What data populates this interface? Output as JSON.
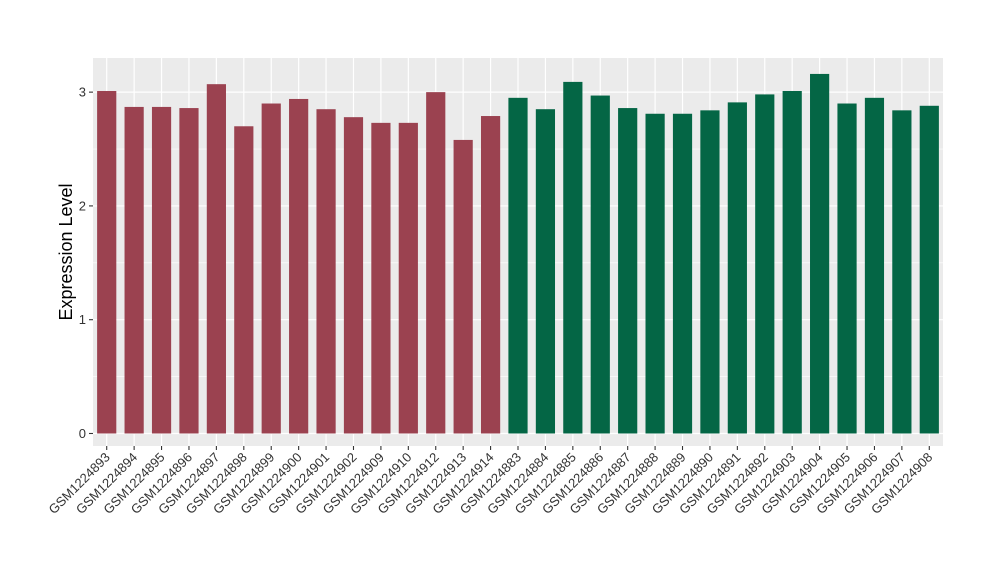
{
  "chart_data": {
    "type": "bar",
    "title": "",
    "xlabel": "",
    "ylabel": "Expression Level",
    "ylim": [
      -0.11,
      3.3
    ],
    "yticks": [
      0,
      1,
      2,
      3
    ],
    "grid": true,
    "legend": "none",
    "categories": [
      "GSM1224893",
      "GSM1224894",
      "GSM1224895",
      "GSM1224896",
      "GSM1224897",
      "GSM1224898",
      "GSM1224899",
      "GSM1224900",
      "GSM1224901",
      "GSM1224902",
      "GSM1224909",
      "GSM1224910",
      "GSM1224912",
      "GSM1224913",
      "GSM1224914",
      "GSM1224883",
      "GSM1224884",
      "GSM1224885",
      "GSM1224886",
      "GSM1224887",
      "GSM1224888",
      "GSM1224889",
      "GSM1224890",
      "GSM1224891",
      "GSM1224892",
      "GSM1224903",
      "GSM1224904",
      "GSM1224905",
      "GSM1224906",
      "GSM1224907",
      "GSM1224908"
    ],
    "values": [
      3.01,
      2.87,
      2.87,
      2.86,
      3.07,
      2.7,
      2.9,
      2.94,
      2.85,
      2.78,
      2.73,
      2.73,
      3.0,
      2.58,
      2.79,
      2.95,
      2.85,
      3.09,
      2.97,
      2.86,
      2.81,
      2.81,
      2.84,
      2.91,
      2.98,
      3.01,
      3.16,
      2.9,
      2.95,
      2.84,
      2.88
    ],
    "group_colors": [
      "#9b4250",
      "#9b4250",
      "#9b4250",
      "#9b4250",
      "#9b4250",
      "#9b4250",
      "#9b4250",
      "#9b4250",
      "#9b4250",
      "#9b4250",
      "#9b4250",
      "#9b4250",
      "#9b4250",
      "#9b4250",
      "#9b4250",
      "#046645",
      "#046645",
      "#046645",
      "#046645",
      "#046645",
      "#046645",
      "#046645",
      "#046645",
      "#046645",
      "#046645",
      "#046645",
      "#046645",
      "#046645",
      "#046645",
      "#046645",
      "#046645"
    ],
    "panel_background": "#ebebeb",
    "grid_color": "#ffffff"
  }
}
